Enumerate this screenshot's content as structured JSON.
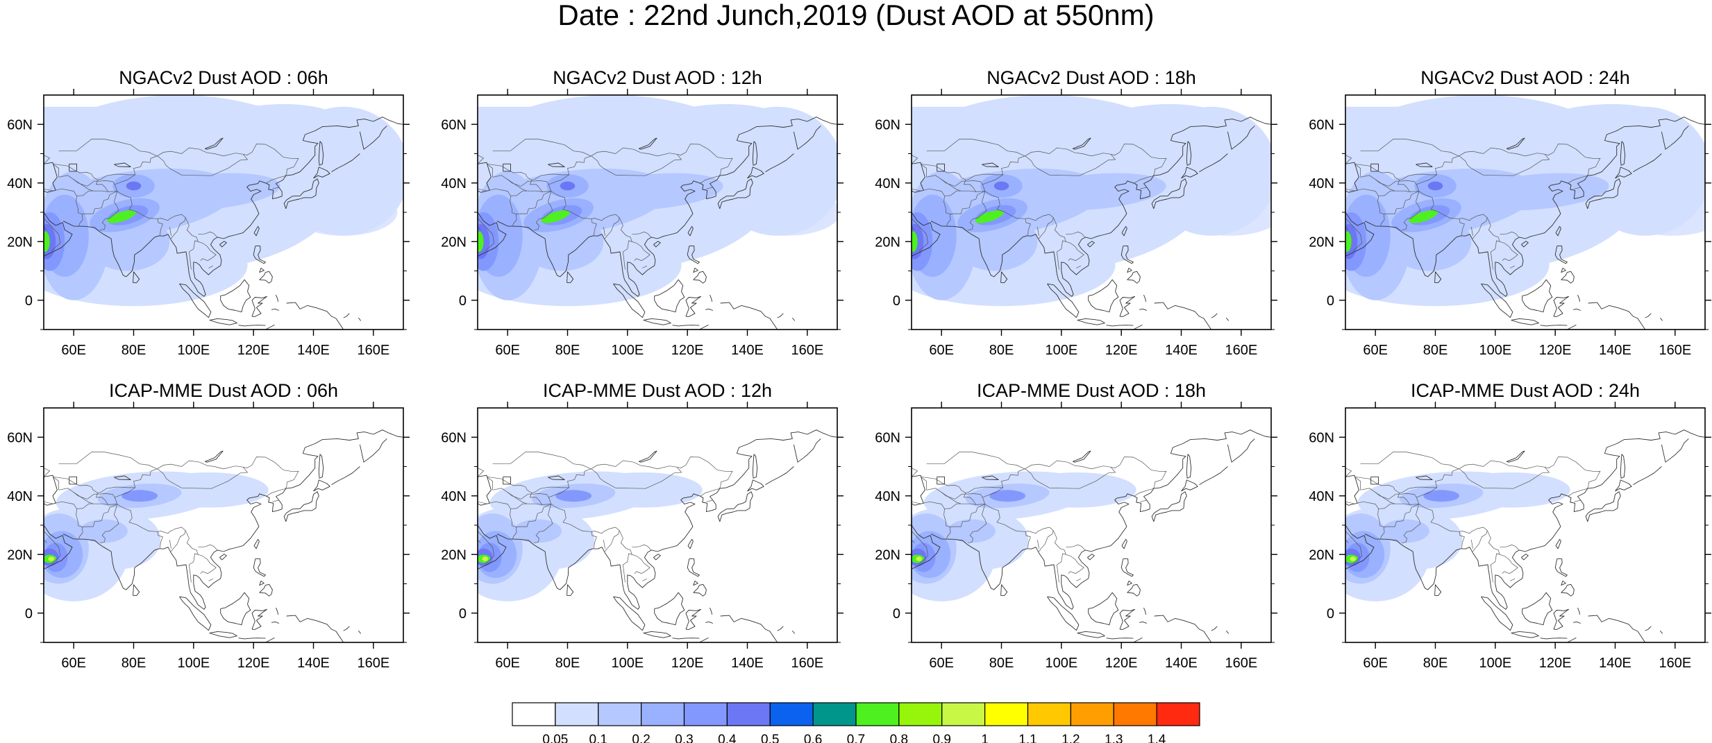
{
  "title": "Date : 22nd Junch,2019 (Dust AOD at 550nm)",
  "panels": [
    {
      "title": "NGACv2 Dust AOD : 06h",
      "model": "NGACv2",
      "hour": "06h"
    },
    {
      "title": "NGACv2 Dust AOD : 12h",
      "model": "NGACv2",
      "hour": "12h"
    },
    {
      "title": "NGACv2 Dust AOD : 18h",
      "model": "NGACv2",
      "hour": "18h"
    },
    {
      "title": "NGACv2 Dust AOD : 24h",
      "model": "NGACv2",
      "hour": "24h"
    },
    {
      "title": "ICAP-MME Dust AOD : 06h",
      "model": "ICAP-MME",
      "hour": "06h"
    },
    {
      "title": "ICAP-MME Dust AOD : 12h",
      "model": "ICAP-MME",
      "hour": "12h"
    },
    {
      "title": "ICAP-MME Dust AOD : 18h",
      "model": "ICAP-MME",
      "hour": "18h"
    },
    {
      "title": "ICAP-MME Dust AOD : 24h",
      "model": "ICAP-MME",
      "hour": "24h"
    }
  ],
  "map_extent": {
    "lon": [
      50,
      170
    ],
    "lat": [
      -10,
      70
    ]
  },
  "lon_ticks": [
    "60E",
    "80E",
    "100E",
    "120E",
    "140E",
    "160E"
  ],
  "lat_ticks": [
    "60N",
    "40N",
    "20N",
    "0"
  ],
  "lon_tick_values": [
    60,
    80,
    100,
    120,
    140,
    160
  ],
  "lat_tick_values": [
    60,
    40,
    20,
    0
  ],
  "colorbar": {
    "labels": [
      "0.05",
      "0.1",
      "0.2",
      "0.3",
      "0.4",
      "0.5",
      "0.6",
      "0.7",
      "0.8",
      "0.9",
      "1",
      "1.1",
      "1.2",
      "1.3",
      "1.4"
    ],
    "colors": [
      "#ffffff",
      "#d2dfff",
      "#b5c8ff",
      "#99b1ff",
      "#8398ff",
      "#6c77f3",
      "#0a62ef",
      "#00968c",
      "#4ef01f",
      "#96f50a",
      "#c8f746",
      "#ffff00",
      "#ffc800",
      "#ff9e00",
      "#ff7800",
      "#ff2a0f"
    ]
  }
}
